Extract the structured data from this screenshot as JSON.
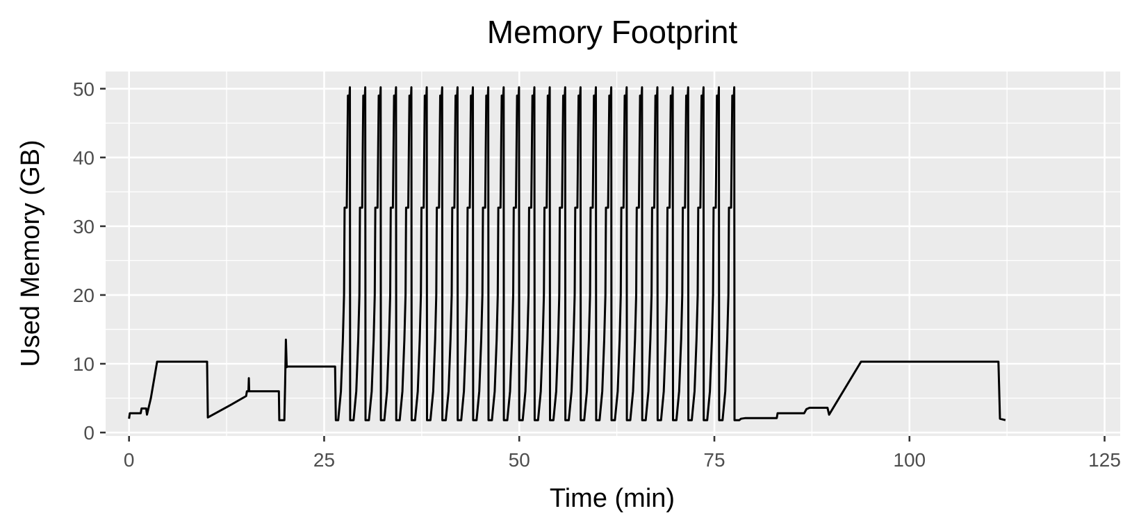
{
  "chart_data": {
    "type": "line",
    "title": "Memory Footprint",
    "xlabel": "Time (min)",
    "ylabel": "Used Memory (GB)",
    "xlim": [
      -3,
      127
    ],
    "ylim": [
      -0.5,
      52.5
    ],
    "x_ticks": [
      0,
      25,
      50,
      75,
      100,
      125
    ],
    "x_tick_labels": [
      "0",
      "25",
      "50",
      "75",
      "100",
      "125"
    ],
    "y_ticks": [
      0,
      10,
      20,
      30,
      40,
      50
    ],
    "y_tick_labels": [
      "0",
      "10",
      "20",
      "30",
      "40",
      "50"
    ],
    "grid": true,
    "legend": "none",
    "colors": {
      "panel": "#ebebeb",
      "grid": "#ffffff",
      "line": "#000000",
      "tick": "#4d4d4d"
    },
    "cycles": {
      "count": 26,
      "first_start_min": 26.8,
      "period_min": 1.97,
      "low_gb": 1.8,
      "shoulder_gb": 32.7,
      "peak_gb": 50.2
    },
    "series": [
      {
        "x": [
          0,
          0.1,
          1.5,
          1.6,
          2.2,
          2.3,
          2.8,
          3.6,
          7,
          10,
          10.1,
          13,
          15,
          15.1,
          15.3,
          15.35,
          15.4,
          16.5,
          19.2,
          19.25,
          19.9,
          20,
          20.1,
          20.2,
          20.3,
          20.4,
          23,
          26.4,
          26.5,
          26.7
        ],
        "y": [
          2.0,
          2.8,
          2.8,
          3.5,
          3.5,
          2.6,
          5.0,
          10.3,
          10.3,
          10.3,
          2.2,
          4.0,
          5.3,
          6.0,
          6.0,
          7.9,
          6.0,
          6.0,
          6.0,
          1.8,
          1.8,
          7.0,
          13.5,
          9.5,
          9.6,
          9.6,
          9.6,
          9.6,
          1.8,
          1.8
        ]
      },
      {
        "x": [
          78.2,
          78.4,
          79,
          83,
          83.1,
          86.5,
          86.8,
          87.2,
          89.5,
          89.7,
          93.8,
          100,
          111.4,
          111.6,
          112.3
        ],
        "y": [
          1.8,
          2.0,
          2.1,
          2.1,
          2.8,
          2.8,
          3.4,
          3.6,
          3.6,
          2.6,
          10.3,
          10.3,
          10.3,
          2.0,
          1.8
        ]
      }
    ]
  }
}
